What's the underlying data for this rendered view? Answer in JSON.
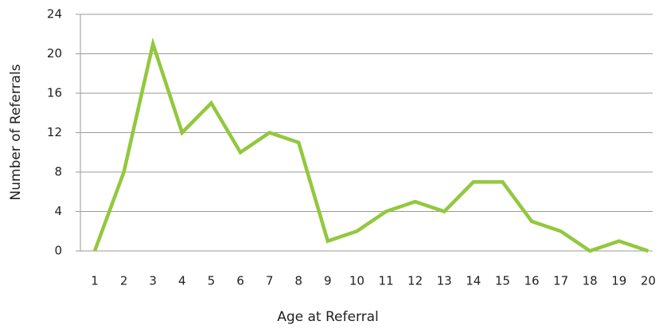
{
  "chart_data": {
    "type": "line",
    "x_label": "Age at Referral",
    "y_label": "Number of Referrals",
    "categories": [
      "1",
      "2",
      "3",
      "4",
      "5",
      "6",
      "7",
      "8",
      "9",
      "10",
      "11",
      "12",
      "13",
      "14",
      "15",
      "16",
      "17",
      "18",
      "19",
      "20"
    ],
    "series": [
      {
        "name": "Referrals",
        "color": "#92c83e",
        "values": [
          0,
          8,
          21,
          12,
          15,
          10,
          12,
          11,
          1,
          2,
          4,
          5,
          4,
          7,
          7,
          3,
          2,
          0,
          1,
          0
        ]
      }
    ],
    "ylim": [
      0,
      24
    ],
    "yticks": [
      0,
      4,
      8,
      12,
      16,
      20,
      24
    ],
    "grid": true
  }
}
